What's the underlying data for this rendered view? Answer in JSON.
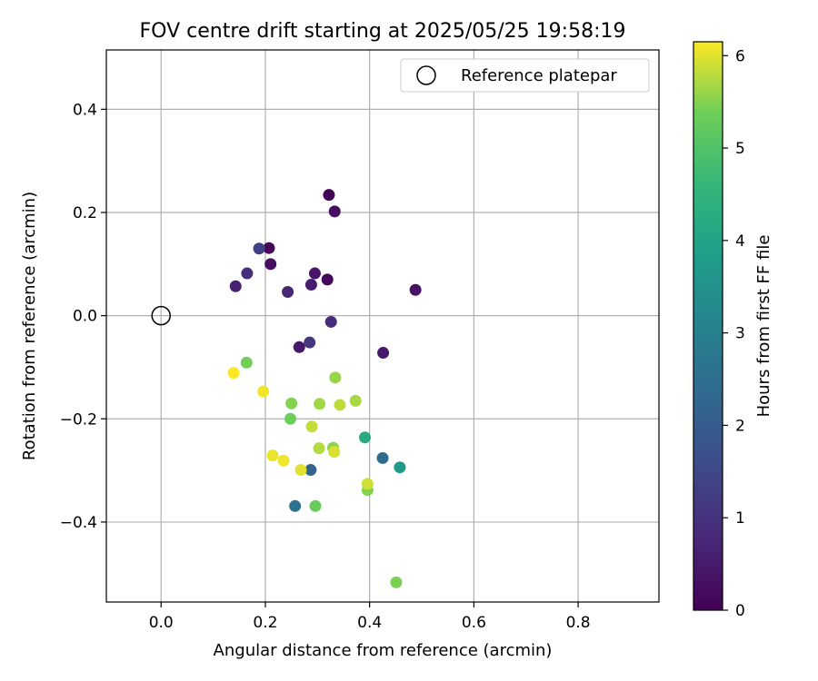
{
  "chart_data": {
    "type": "scatter",
    "title": "FOV centre drift starting at 2025/05/25 19:58:19",
    "xlabel": "Angular distance from reference (arcmin)",
    "ylabel": "Rotation from reference (arcmin)",
    "xlim": [
      -0.105,
      0.955
    ],
    "ylim": [
      -0.555,
      0.515
    ],
    "xticks": [
      0.0,
      0.2,
      0.4,
      0.6,
      0.8
    ],
    "xtick_labels": [
      "0.0",
      "0.2",
      "0.4",
      "0.6",
      "0.8"
    ],
    "yticks": [
      -0.4,
      -0.2,
      0.0,
      0.2,
      0.4
    ],
    "ytick_labels": [
      "−0.4",
      "−0.2",
      "0.0",
      "0.2",
      "0.4"
    ],
    "grid": true,
    "legend": {
      "position": "top-right",
      "entries": [
        {
          "label": "Reference platepar",
          "marker": "open-circle"
        }
      ]
    },
    "reference_point": {
      "x": 0.0,
      "y": 0.0
    },
    "colorbar": {
      "label": "Hours from first FF file",
      "colormap": "viridis",
      "range": [
        0,
        6.15
      ],
      "ticks": [
        0,
        1,
        2,
        3,
        4,
        5,
        6
      ],
      "tick_labels": [
        "0",
        "1",
        "2",
        "3",
        "4",
        "5",
        "6"
      ]
    },
    "points": [
      {
        "x": 0.322,
        "y": 0.234,
        "hours": 0.05
      },
      {
        "x": 0.207,
        "y": 0.131,
        "hours": 0.1
      },
      {
        "x": 0.319,
        "y": 0.07,
        "hours": 0.15
      },
      {
        "x": 0.333,
        "y": 0.202,
        "hours": 0.25
      },
      {
        "x": 0.21,
        "y": 0.1,
        "hours": 0.3
      },
      {
        "x": 0.488,
        "y": 0.05,
        "hours": 0.35
      },
      {
        "x": 0.295,
        "y": 0.082,
        "hours": 0.4
      },
      {
        "x": 0.265,
        "y": -0.061,
        "hours": 0.45
      },
      {
        "x": 0.426,
        "y": -0.072,
        "hours": 0.5
      },
      {
        "x": 0.288,
        "y": 0.06,
        "hours": 0.55
      },
      {
        "x": 0.143,
        "y": 0.057,
        "hours": 0.65
      },
      {
        "x": 0.243,
        "y": 0.046,
        "hours": 0.75
      },
      {
        "x": 0.326,
        "y": -0.012,
        "hours": 0.85
      },
      {
        "x": 0.165,
        "y": 0.082,
        "hours": 0.9
      },
      {
        "x": 0.285,
        "y": -0.052,
        "hours": 1.1
      },
      {
        "x": 0.188,
        "y": 0.13,
        "hours": 1.35
      },
      {
        "x": 0.287,
        "y": -0.299,
        "hours": 2.2
      },
      {
        "x": 0.425,
        "y": -0.276,
        "hours": 2.4
      },
      {
        "x": 0.257,
        "y": -0.369,
        "hours": 2.6
      },
      {
        "x": 0.458,
        "y": -0.294,
        "hours": 3.7
      },
      {
        "x": 0.391,
        "y": -0.236,
        "hours": 4.2
      },
      {
        "x": 0.296,
        "y": -0.369,
        "hours": 5.3
      },
      {
        "x": 0.248,
        "y": -0.2,
        "hours": 5.35
      },
      {
        "x": 0.164,
        "y": -0.091,
        "hours": 5.4
      },
      {
        "x": 0.451,
        "y": -0.517,
        "hours": 5.45
      },
      {
        "x": 0.25,
        "y": -0.17,
        "hours": 5.5
      },
      {
        "x": 0.396,
        "y": -0.338,
        "hours": 5.5
      },
      {
        "x": 0.33,
        "y": -0.256,
        "hours": 5.55
      },
      {
        "x": 0.334,
        "y": -0.12,
        "hours": 5.6
      },
      {
        "x": 0.304,
        "y": -0.171,
        "hours": 5.65
      },
      {
        "x": 0.373,
        "y": -0.165,
        "hours": 5.7
      },
      {
        "x": 0.303,
        "y": -0.257,
        "hours": 5.75
      },
      {
        "x": 0.343,
        "y": -0.173,
        "hours": 5.8
      },
      {
        "x": 0.289,
        "y": -0.215,
        "hours": 5.85
      },
      {
        "x": 0.396,
        "y": -0.326,
        "hours": 5.9
      },
      {
        "x": 0.332,
        "y": -0.264,
        "hours": 5.95
      },
      {
        "x": 0.268,
        "y": -0.299,
        "hours": 6.0
      },
      {
        "x": 0.214,
        "y": -0.271,
        "hours": 6.05
      },
      {
        "x": 0.235,
        "y": -0.281,
        "hours": 6.08
      },
      {
        "x": 0.196,
        "y": -0.147,
        "hours": 6.1
      },
      {
        "x": 0.139,
        "y": -0.111,
        "hours": 6.15
      }
    ]
  }
}
